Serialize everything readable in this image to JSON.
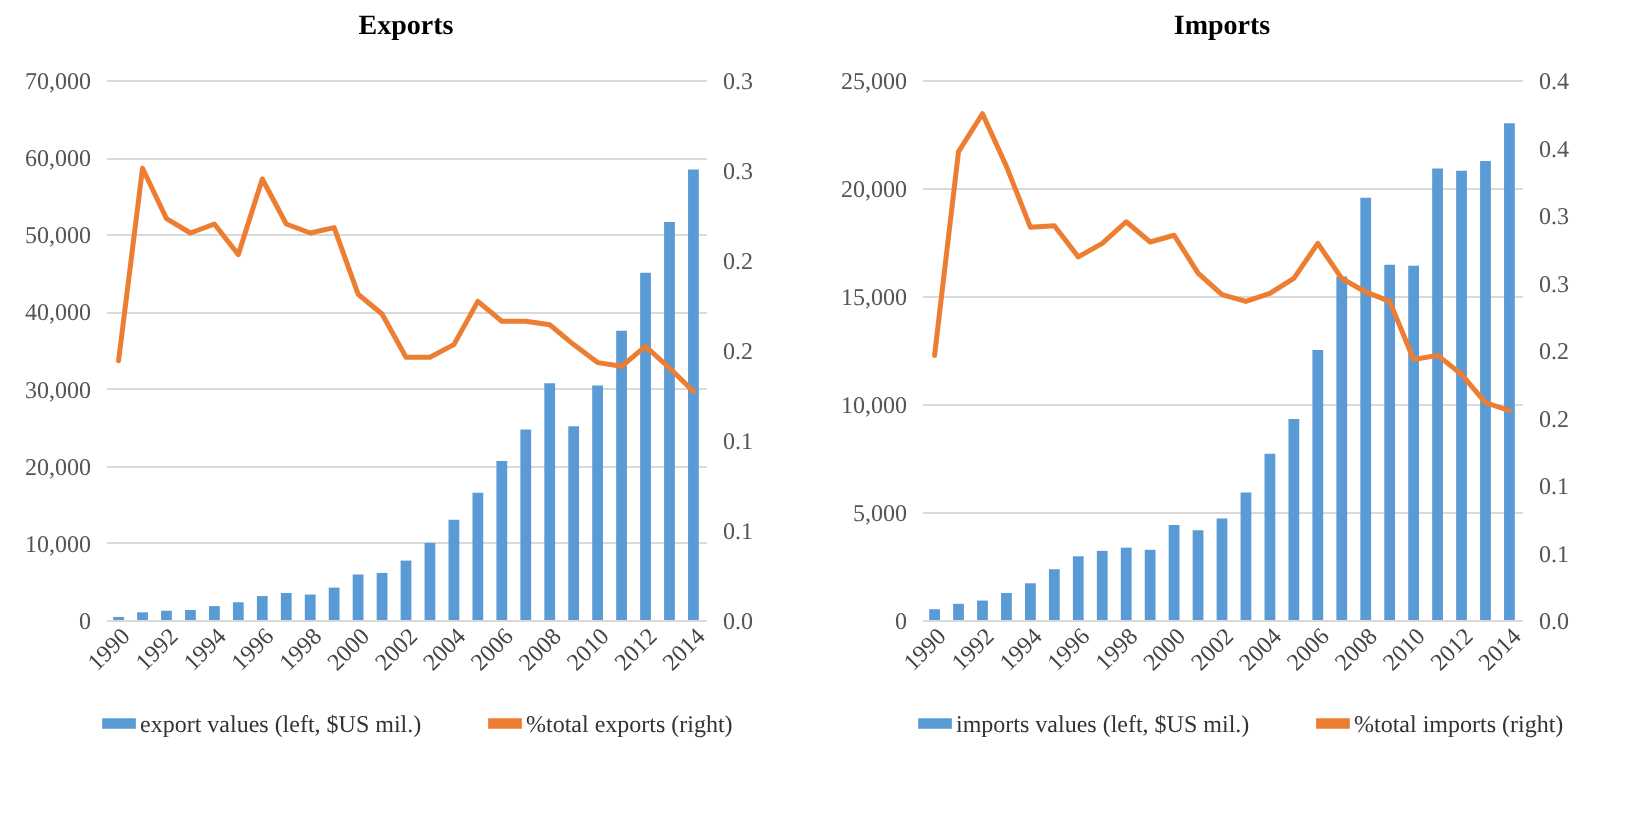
{
  "chart_data": [
    {
      "type": "bar",
      "title": "Exports",
      "categories": [
        "1990",
        null,
        "1992",
        null,
        "1994",
        null,
        "1996",
        null,
        "1998",
        null,
        "2000",
        null,
        "2002",
        null,
        "2004",
        null,
        "2006",
        null,
        "2008",
        null,
        "2010",
        null,
        "2012",
        null,
        "2014"
      ],
      "series": [
        {
          "name": "export values (left, $US mil.)",
          "color": "#5b9bd5",
          "values": [
            400,
            1000,
            1200,
            1300,
            1800,
            2300,
            3100,
            3500,
            3300,
            4200,
            5900,
            6100,
            7700,
            10000,
            13000,
            16500,
            20600,
            24700,
            30700,
            25100,
            30400,
            37500,
            45000,
            51600,
            58400
          ]
        },
        {
          "name": "%total exports (right)",
          "type": "line",
          "axis": "y2",
          "color": "#ed7d31",
          "values": [
            0.144,
            0.251,
            0.223,
            0.215,
            0.22,
            0.203,
            0.245,
            0.22,
            0.215,
            0.218,
            0.181,
            0.17,
            0.146,
            0.146,
            0.153,
            0.177,
            0.166,
            0.166,
            0.164,
            0.153,
            0.143,
            0.141,
            0.152,
            0.14,
            0.127
          ]
        }
      ],
      "ylim": [
        0,
        70000
      ],
      "yticks": [
        0,
        {
          "value": 10000,
          "label": "10,000"
        },
        {
          "value": 20000,
          "label": "20,000"
        },
        {
          "value": 30000,
          "label": "30,000"
        },
        {
          "value": 40000,
          "label": "40,000"
        },
        {
          "value": 50000,
          "label": "50,000"
        },
        {
          "value": 60000,
          "label": "60,000"
        },
        {
          "value": 70000,
          "label": "70,000"
        }
      ],
      "y2lim": [
        0,
        0.3
      ],
      "y2ticks": [
        {
          "value": 0,
          "label": "0.0"
        },
        {
          "value": 0.05,
          "label": "0.1"
        },
        0.1,
        {
          "value": 0.15,
          "label": "0.2"
        },
        0.2,
        {
          "value": 0.25,
          "label": "0.3"
        },
        0.3
      ],
      "grid": "y",
      "legend": "bottom"
    },
    {
      "type": "bar",
      "title": "Imports",
      "categories": [
        "1990",
        null,
        "1992",
        null,
        "1994",
        null,
        "1996",
        null,
        "1998",
        null,
        "2000",
        null,
        "2002",
        null,
        "2004",
        null,
        "2006",
        null,
        "2008",
        null,
        "2010",
        null,
        "2012",
        null,
        "2014"
      ],
      "series": [
        {
          "name": "imports values (left, $US mil.)",
          "color": "#5b9bd5",
          "values": [
            500,
            750,
            900,
            1250,
            1700,
            2350,
            2950,
            3200,
            3350,
            3250,
            4400,
            4150,
            4700,
            5900,
            7700,
            9300,
            12500,
            15900,
            19550,
            16450,
            16400,
            20900,
            20800,
            21250,
            23000
          ]
        },
        {
          "name": "%total imports (right)",
          "type": "line",
          "axis": "y2",
          "color": "#ed7d31",
          "values": [
            0.196,
            0.347,
            0.375,
            0.336,
            0.291,
            0.292,
            0.269,
            0.279,
            0.295,
            0.28,
            0.285,
            0.257,
            0.241,
            0.236,
            0.242,
            0.253,
            0.279,
            0.253,
            0.243,
            0.236,
            0.193,
            0.196,
            0.182,
            0.161,
            0.155
          ]
        }
      ],
      "ylim": [
        0,
        25000
      ],
      "yticks": [
        0,
        {
          "value": 5000,
          "label": "5,000"
        },
        {
          "value": 10000,
          "label": "10,000"
        },
        {
          "value": 15000,
          "label": "15,000"
        },
        {
          "value": 20000,
          "label": "20,000"
        },
        {
          "value": 25000,
          "label": "25,000"
        }
      ],
      "y2lim": [
        0,
        0.4
      ],
      "y2ticks": [
        {
          "value": 0,
          "label": "0.0"
        },
        {
          "value": 0.05,
          "label": "0.1"
        },
        0.1,
        {
          "value": 0.15,
          "label": "0.2"
        },
        0.2,
        {
          "value": 0.25,
          "label": "0.3"
        },
        0.3,
        {
          "value": 0.35,
          "label": "0.4"
        },
        0.4
      ],
      "grid": "y",
      "legend": "bottom"
    }
  ]
}
